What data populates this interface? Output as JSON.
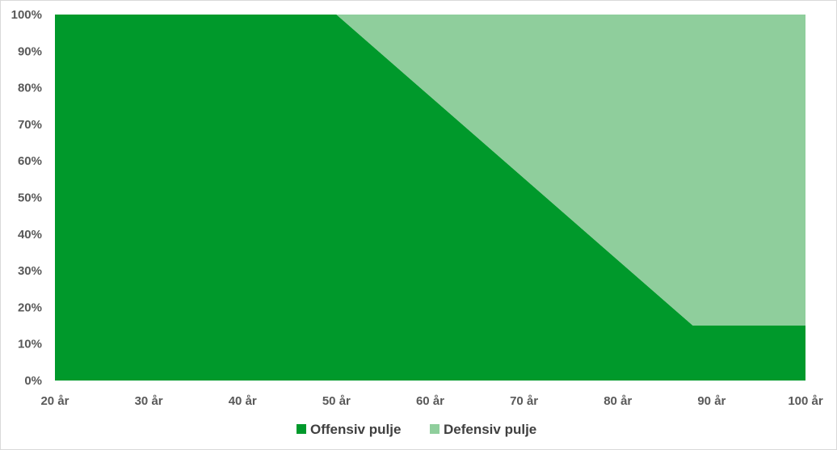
{
  "chart_data": {
    "type": "area",
    "stacked": true,
    "x": [
      20,
      50,
      88,
      89,
      100
    ],
    "x_ticks": [
      20,
      30,
      40,
      50,
      60,
      70,
      80,
      90,
      100
    ],
    "x_tick_labels": [
      "20 år",
      "30 år",
      "40 år",
      "50 år",
      "60 år",
      "70 år",
      "80 år",
      "90 år",
      "100 år"
    ],
    "y_ticks": [
      0,
      10,
      20,
      30,
      40,
      50,
      60,
      70,
      80,
      90,
      100
    ],
    "y_tick_labels": [
      "0%",
      "10%",
      "20%",
      "30%",
      "40%",
      "50%",
      "60%",
      "70%",
      "80%",
      "90%",
      "100%"
    ],
    "xlim": [
      20,
      100
    ],
    "ylim": [
      0,
      100
    ],
    "grid": false,
    "legend": "bottom",
    "series": [
      {
        "name": "Offensiv pulje",
        "values": [
          100,
          100,
          15,
          15,
          15
        ],
        "color": "#00992b"
      },
      {
        "name": "Defensiv pulje",
        "values": [
          0,
          0,
          85,
          85,
          85
        ],
        "color": "#8fce9c"
      }
    ],
    "title": "",
    "xlabel": "",
    "ylabel": ""
  }
}
